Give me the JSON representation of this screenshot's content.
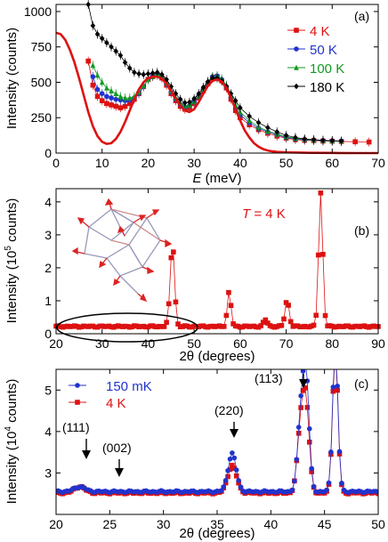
{
  "chart_data": [
    {
      "type": "line",
      "panel_label": "(a)",
      "xlabel": "E (meV)",
      "xlabel_parts": {
        "var": "E",
        "unit": " (meV)"
      },
      "ylabel": "Intensity (counts)",
      "xlim": [
        0,
        70
      ],
      "ylim": [
        0,
        1050
      ],
      "xticks": [
        0,
        10,
        20,
        30,
        40,
        50,
        60,
        70
      ],
      "yticks": [
        0,
        250,
        500,
        750,
        1000
      ],
      "legend": "top-right",
      "series": [
        {
          "name": "4 K",
          "color": "#dd1111",
          "marker": "square",
          "x": [
            7,
            8,
            9,
            10,
            11,
            12,
            13,
            14,
            15,
            16,
            17,
            18,
            19,
            20,
            21,
            22,
            23,
            24,
            25,
            26,
            27,
            28,
            29,
            30,
            31,
            32,
            33,
            34,
            35,
            36,
            37,
            38,
            39,
            40,
            42,
            44,
            46,
            48,
            50,
            52,
            54,
            56,
            58,
            60,
            62,
            65,
            68
          ],
          "y": [
            650,
            480,
            400,
            370,
            350,
            340,
            330,
            320,
            330,
            350,
            380,
            420,
            470,
            520,
            540,
            550,
            530,
            480,
            420,
            370,
            330,
            310,
            320,
            350,
            390,
            440,
            490,
            530,
            540,
            510,
            460,
            380,
            300,
            250,
            200,
            165,
            140,
            120,
            105,
            95,
            90,
            88,
            85,
            84,
            82,
            80,
            78
          ]
        },
        {
          "name": "50 K",
          "color": "#2233cc",
          "marker": "circle",
          "x": [
            8,
            9,
            10,
            11,
            12,
            13,
            14,
            15,
            16,
            17,
            18,
            19,
            20,
            21,
            22,
            23,
            24,
            25,
            26,
            27,
            28,
            29,
            30,
            31,
            32,
            33,
            34,
            35,
            36,
            37,
            38,
            39,
            40,
            42,
            44,
            46,
            48,
            50,
            52,
            54,
            56,
            58,
            60,
            62
          ],
          "y": [
            540,
            450,
            420,
            400,
            390,
            380,
            375,
            370,
            375,
            390,
            420,
            470,
            520,
            545,
            555,
            535,
            490,
            430,
            380,
            345,
            325,
            335,
            360,
            400,
            450,
            500,
            540,
            545,
            520,
            470,
            395,
            320,
            270,
            215,
            175,
            150,
            130,
            110,
            100,
            95,
            90,
            88,
            86,
            84
          ]
        },
        {
          "name": "100 K",
          "color": "#119922",
          "marker": "triangle",
          "x": [
            8,
            9,
            10,
            11,
            12,
            13,
            14,
            15,
            16,
            17,
            18,
            19,
            20,
            21,
            22,
            23,
            24,
            25,
            26,
            27,
            28,
            29,
            30,
            31,
            32,
            33,
            34,
            35,
            36,
            37,
            38,
            39,
            40,
            42,
            44,
            46,
            48,
            50,
            52,
            54,
            56,
            58,
            60,
            62
          ],
          "y": [
            620,
            550,
            500,
            460,
            440,
            420,
            400,
            390,
            390,
            400,
            430,
            475,
            520,
            545,
            555,
            540,
            500,
            440,
            390,
            355,
            335,
            340,
            365,
            405,
            455,
            505,
            540,
            545,
            525,
            480,
            410,
            340,
            290,
            230,
            185,
            155,
            135,
            115,
            105,
            98,
            92,
            90,
            87,
            85
          ]
        },
        {
          "name": "180 K",
          "color": "#000000",
          "marker": "diamond",
          "x": [
            7,
            8,
            9,
            10,
            11,
            12,
            13,
            14,
            15,
            16,
            17,
            18,
            19,
            20,
            21,
            22,
            23,
            24,
            25,
            26,
            27,
            28,
            29,
            30,
            31,
            32,
            33,
            34,
            35,
            36,
            37,
            38,
            39,
            40,
            42,
            44,
            46,
            48,
            50,
            52,
            54,
            56,
            58,
            60,
            62
          ],
          "y": [
            1050,
            900,
            840,
            810,
            780,
            750,
            720,
            690,
            640,
            600,
            570,
            560,
            555,
            560,
            565,
            570,
            555,
            520,
            470,
            420,
            380,
            355,
            360,
            385,
            420,
            465,
            505,
            530,
            530,
            510,
            470,
            420,
            370,
            320,
            260,
            215,
            180,
            150,
            125,
            110,
            100,
            95,
            90,
            88,
            85
          ]
        },
        {
          "name": "",
          "color": "#dd1111",
          "marker": "none",
          "style": "thick-line",
          "x": [
            0,
            1,
            2,
            3,
            4,
            5,
            6,
            7,
            8,
            9,
            10,
            11,
            12,
            13,
            14,
            15,
            16,
            17,
            18,
            19,
            20,
            21,
            22,
            23,
            24,
            25,
            26,
            27,
            28,
            29,
            30,
            31,
            32,
            33,
            34,
            35,
            36,
            37,
            38,
            39,
            40,
            41,
            42,
            43,
            44,
            45,
            46,
            47,
            48,
            50,
            55,
            60,
            65,
            70
          ],
          "y": [
            850,
            840,
            800,
            730,
            640,
            530,
            410,
            290,
            190,
            120,
            80,
            65,
            70,
            100,
            150,
            220,
            300,
            380,
            450,
            500,
            530,
            540,
            540,
            525,
            490,
            440,
            385,
            335,
            300,
            290,
            310,
            360,
            420,
            475,
            510,
            520,
            505,
            460,
            390,
            310,
            230,
            160,
            110,
            70,
            45,
            28,
            18,
            12,
            8,
            5,
            2,
            1,
            0,
            0
          ]
        }
      ]
    },
    {
      "type": "line",
      "panel_label": "(b)",
      "xlabel": "2θ (degrees)",
      "ylabel": "Intensity (10^5 counts)",
      "ylabel_parts": {
        "pre": "Intensity (10",
        "sup": "5",
        "post": " counts)"
      },
      "annotation": "T = 4 K",
      "annotation_parts": {
        "var": "T",
        "rest": " = 4 K"
      },
      "xlim": [
        20,
        90
      ],
      "ylim": [
        0,
        4.4
      ],
      "xticks": [
        20,
        30,
        40,
        50,
        60,
        70,
        80,
        90
      ],
      "yticks": [
        0,
        1,
        2,
        3,
        4
      ],
      "series": [
        {
          "name": "",
          "color": "#dd1111",
          "marker": "square",
          "peaks": [
            [
              44.5,
              0.15,
              0.45
            ],
            [
              45.3,
              2.5,
              0.45
            ],
            [
              57.6,
              1.05,
              0.4
            ],
            [
              65.5,
              0.2,
              0.45
            ],
            [
              70.2,
              0.8,
              0.45
            ],
            [
              77.5,
              4.05,
              0.45
            ]
          ],
          "background": 0.22,
          "x_range": [
            20,
            90
          ],
          "step": 0.5
        }
      ]
    },
    {
      "type": "line",
      "panel_label": "(c)",
      "xlabel": "2θ (degrees)",
      "ylabel": "Intensity (10^4 counts)",
      "ylabel_parts": {
        "pre": "Intensity (10",
        "sup": "4",
        "post": " counts)"
      },
      "xlim": [
        20,
        50
      ],
      "ylim": [
        2.0,
        5.5
      ],
      "xticks": [
        20,
        25,
        30,
        35,
        40,
        45,
        50
      ],
      "yticks": [
        3,
        4,
        5
      ],
      "legend": "top-left",
      "annotations": [
        "(111)",
        "(002)",
        "(220)",
        "(113)"
      ],
      "series": [
        {
          "name": "150 mK",
          "color": "#2233cc",
          "marker": "circle",
          "peaks": [
            [
              22.2,
              0.12,
              0.5
            ],
            [
              36.4,
              0.92,
              0.38
            ],
            [
              42.8,
              1.8,
              0.3
            ],
            [
              43.3,
              2.6,
              0.28
            ],
            [
              46.0,
              3.5,
              0.25
            ]
          ],
          "background": 2.55,
          "x_range": [
            20,
            50
          ],
          "step": 0.2
        },
        {
          "name": "4 K",
          "color": "#dd1111",
          "marker": "square",
          "peaks": [
            [
              22.2,
              0.15,
              0.5
            ],
            [
              36.4,
              0.65,
              0.42
            ],
            [
              42.8,
              1.6,
              0.32
            ],
            [
              43.3,
              1.9,
              0.3
            ],
            [
              46.0,
              3.4,
              0.25
            ]
          ],
          "background": 2.52,
          "x_range": [
            20,
            50
          ],
          "step": 0.2
        }
      ]
    }
  ]
}
